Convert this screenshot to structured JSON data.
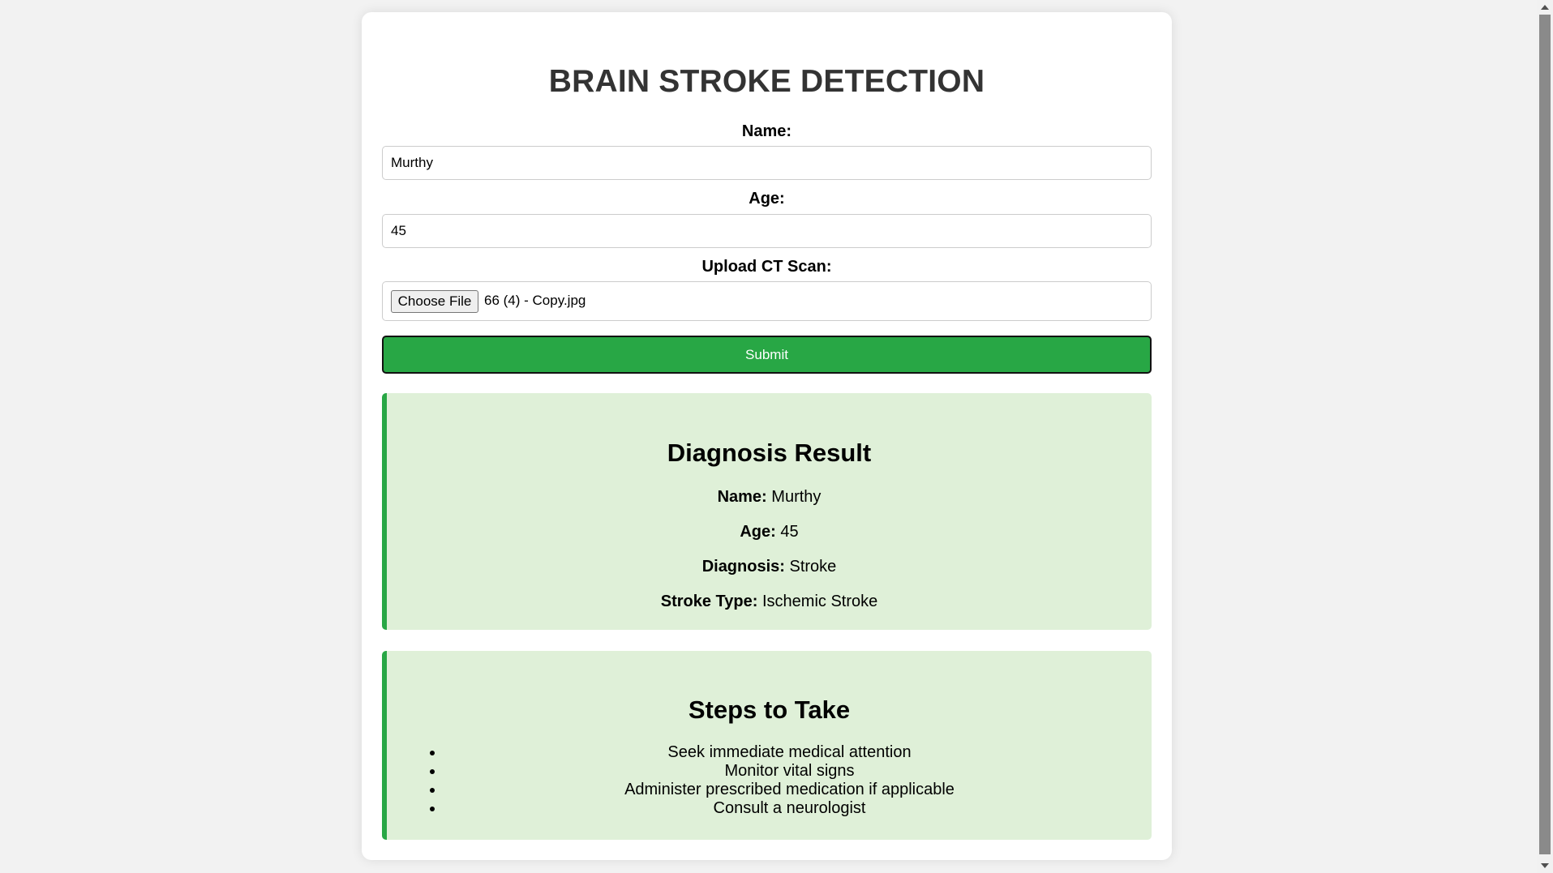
{
  "page": {
    "title": "BRAIN STROKE DETECTION"
  },
  "form": {
    "name_label": "Name:",
    "name_value": "Murthy",
    "age_label": "Age:",
    "age_value": "45",
    "upload_label": "Upload CT Scan:",
    "choose_file_label": "Choose File",
    "file_name": "66 (4) - Copy.jpg",
    "submit_label": "Submit"
  },
  "result": {
    "title": "Diagnosis Result",
    "name_key": "Name:",
    "name_value": "Murthy",
    "age_key": "Age:",
    "age_value": "45",
    "diagnosis_key": "Diagnosis:",
    "diagnosis_value": "Stroke",
    "stroke_type_key": "Stroke Type:",
    "stroke_type_value": "Ischemic Stroke"
  },
  "steps": {
    "title": "Steps to Take",
    "items": [
      "Seek immediate medical attention",
      "Monitor vital signs",
      "Administer prescribed medication if applicable",
      "Consult a neurologist"
    ]
  },
  "colors": {
    "accent_green": "#28a745",
    "panel_background": "#dff0d8",
    "page_background": "#f2f2f2",
    "title_color": "#333333"
  }
}
